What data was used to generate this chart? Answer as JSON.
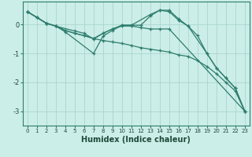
{
  "xlabel": "Humidex (Indice chaleur)",
  "bg_color": "#cceee8",
  "grid_color": "#aad4ce",
  "line_color": "#2e7d6e",
  "xlim": [
    -0.5,
    23.5
  ],
  "ylim": [
    -3.5,
    0.8
  ],
  "yticks": [
    0,
    -1,
    -2,
    -3
  ],
  "xticks": [
    0,
    1,
    2,
    3,
    4,
    5,
    6,
    7,
    8,
    9,
    10,
    11,
    12,
    13,
    14,
    15,
    16,
    17,
    18,
    19,
    20,
    21,
    22,
    23
  ],
  "series": [
    {
      "x": [
        0,
        1,
        2,
        3,
        4,
        5,
        6,
        7,
        8,
        9,
        10,
        11,
        12,
        13,
        14,
        15,
        16,
        17,
        18,
        19,
        20,
        21,
        22,
        23
      ],
      "y": [
        0.45,
        0.25,
        0.05,
        -0.05,
        -0.2,
        -0.3,
        -0.38,
        -0.48,
        -0.55,
        -0.6,
        -0.65,
        -0.72,
        -0.8,
        -0.85,
        -0.9,
        -0.95,
        -1.05,
        -1.1,
        -1.25,
        -1.45,
        -1.7,
        -2.0,
        -2.3,
        -3.0
      ]
    },
    {
      "x": [
        0,
        2,
        3,
        4,
        7,
        8,
        9,
        10,
        11,
        13,
        14,
        15,
        16,
        17,
        19,
        20,
        21,
        22,
        23
      ],
      "y": [
        0.45,
        0.05,
        -0.05,
        -0.25,
        -1.0,
        -0.4,
        -0.2,
        -0.02,
        -0.02,
        0.35,
        0.5,
        0.5,
        0.2,
        -0.05,
        -1.0,
        -1.5,
        -1.85,
        -2.2,
        -3.0
      ]
    },
    {
      "x": [
        0,
        1,
        2,
        3,
        5,
        6,
        7,
        8,
        9,
        10,
        11,
        12,
        13,
        14,
        15,
        16,
        17,
        18,
        19,
        20,
        21,
        22,
        23
      ],
      "y": [
        0.45,
        0.25,
        0.05,
        -0.05,
        -0.22,
        -0.3,
        -0.5,
        -0.3,
        -0.15,
        -0.02,
        -0.02,
        -0.02,
        0.3,
        0.5,
        0.45,
        0.15,
        -0.05,
        -0.38,
        -1.0,
        -1.5,
        -1.85,
        -2.2,
        -3.0
      ]
    },
    {
      "x": [
        0,
        1,
        2,
        3,
        4,
        5,
        6,
        7,
        8,
        9,
        10,
        11,
        12,
        13,
        14,
        15,
        23
      ],
      "y": [
        0.45,
        0.25,
        0.05,
        -0.05,
        -0.2,
        -0.3,
        -0.38,
        -0.48,
        -0.3,
        -0.15,
        -0.05,
        -0.05,
        -0.1,
        -0.15,
        -0.15,
        -0.15,
        -3.0
      ]
    }
  ]
}
